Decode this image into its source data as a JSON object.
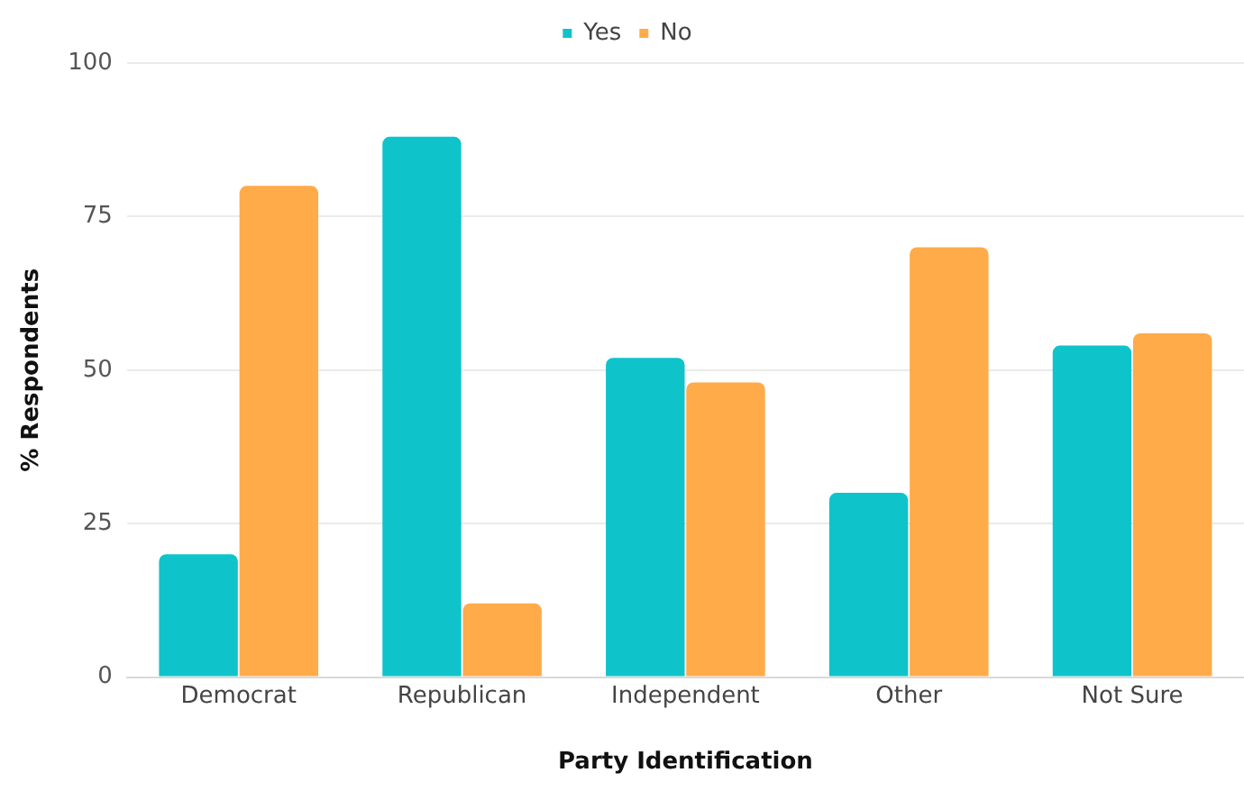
{
  "chart_data": {
    "type": "bar",
    "xlabel": "Party Identification",
    "ylabel": "% Respondents",
    "categories": [
      "Democrat",
      "Republican",
      "Independent",
      "Other",
      "Not Sure"
    ],
    "series": [
      {
        "name": "Yes",
        "color": "#0fc3ca",
        "values": [
          20,
          88,
          52,
          30,
          54
        ]
      },
      {
        "name": "No",
        "color": "#ffab4a",
        "values": [
          80,
          12,
          48,
          70,
          56
        ]
      }
    ],
    "ylim": [
      0,
      100
    ],
    "yticks": [
      0,
      25,
      50,
      75,
      100
    ],
    "grid": "y",
    "legend": "top"
  }
}
